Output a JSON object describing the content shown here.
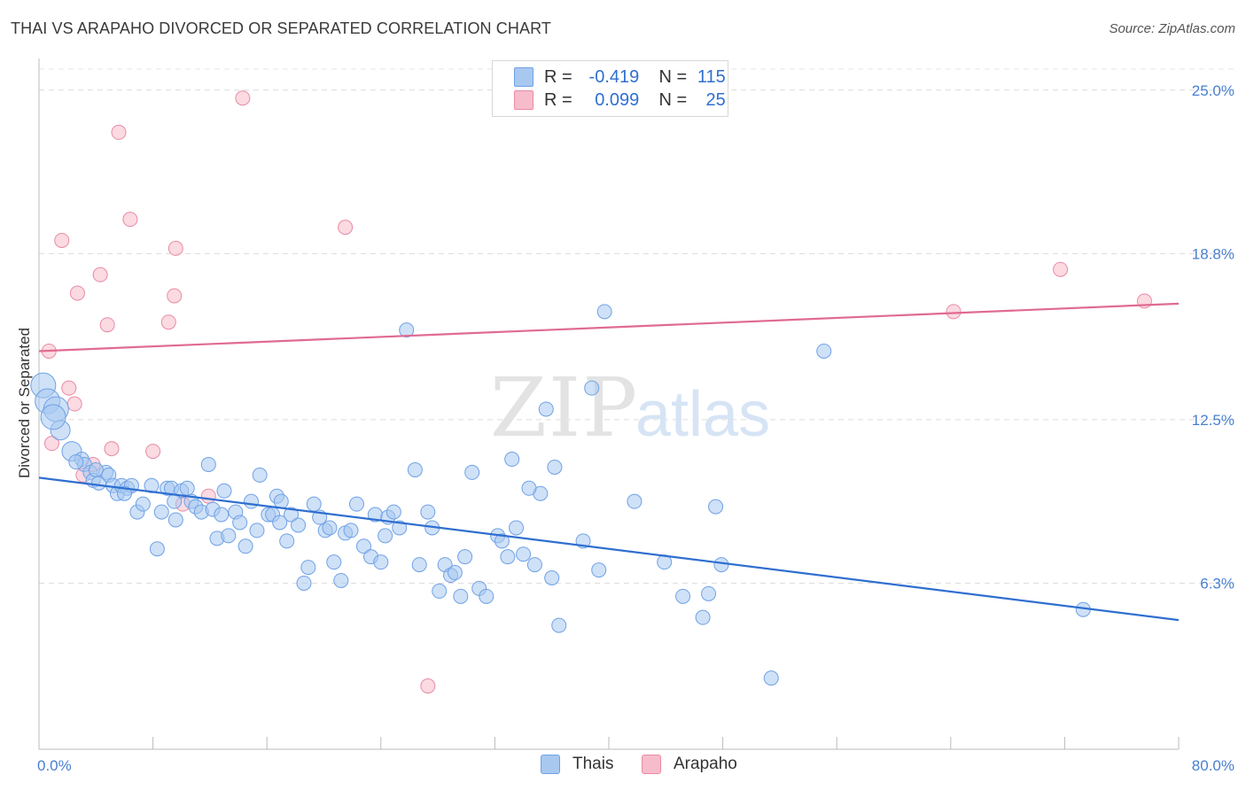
{
  "header": {
    "title": "THAI VS ARAPAHO DIVORCED OR SEPARATED CORRELATION CHART",
    "source": "Source: ZipAtlas.com"
  },
  "legend": {
    "rows": [
      {
        "r_label": "R =",
        "r_value": "-0.419",
        "n_label": "N =",
        "n_value": "115",
        "color": "#a8c8f0"
      },
      {
        "r_label": "R =",
        "r_value": "0.099",
        "n_label": "N =",
        "n_value": "25",
        "color": "#f7bccb"
      }
    ]
  },
  "bottom_legend": {
    "items": [
      {
        "label": "Thais",
        "color": "#a8c8f0"
      },
      {
        "label": "Arapaho",
        "color": "#f7bccb"
      }
    ]
  },
  "watermark": {
    "zip": "ZIP",
    "atlas": "atlas"
  },
  "chart_data": {
    "type": "scatter",
    "title": "THAI VS ARAPAHO DIVORCED OR SEPARATED CORRELATION CHART",
    "ylabel": "Divorced or Separated",
    "xlabel": "",
    "xlim": [
      0,
      80
    ],
    "ylim": [
      0,
      26
    ],
    "x_tick_labels": [
      {
        "value": 0,
        "label": "0.0%"
      },
      {
        "value": 80,
        "label": "80.0%"
      }
    ],
    "y_tick_labels": [
      {
        "value": 6.3,
        "label": "6.3%"
      },
      {
        "value": 12.5,
        "label": "12.5%"
      },
      {
        "value": 18.8,
        "label": "18.8%"
      },
      {
        "value": 25.0,
        "label": "25.0%"
      }
    ],
    "grid": true,
    "series": [
      {
        "name": "Thais",
        "color": "#6fa1e6",
        "fill": "#a8c8f0",
        "trend": {
          "x": [
            0,
            80
          ],
          "y": [
            10.3,
            4.9
          ],
          "color": "#2f6fd0"
        },
        "points": [
          [
            0.3,
            13.8
          ],
          [
            0.6,
            13.2
          ],
          [
            1.2,
            12.9
          ],
          [
            1.5,
            12.1
          ],
          [
            2.3,
            11.3
          ],
          [
            3.0,
            11.0
          ],
          [
            3.2,
            10.8
          ],
          [
            3.6,
            10.5
          ],
          [
            3.8,
            10.2
          ],
          [
            4.2,
            10.1
          ],
          [
            4.7,
            10.5
          ],
          [
            4.9,
            10.4
          ],
          [
            5.2,
            10.0
          ],
          [
            5.5,
            9.7
          ],
          [
            5.8,
            10.0
          ],
          [
            6.2,
            9.9
          ],
          [
            6.5,
            10.0
          ],
          [
            6.9,
            9.0
          ],
          [
            7.3,
            9.3
          ],
          [
            7.9,
            10.0
          ],
          [
            8.3,
            7.6
          ],
          [
            8.6,
            9.0
          ],
          [
            9.0,
            9.9
          ],
          [
            9.3,
            9.9
          ],
          [
            9.6,
            8.7
          ],
          [
            10.0,
            9.8
          ],
          [
            10.4,
            9.9
          ],
          [
            10.7,
            9.4
          ],
          [
            11.0,
            9.2
          ],
          [
            11.4,
            9.0
          ],
          [
            11.9,
            10.8
          ],
          [
            12.2,
            9.1
          ],
          [
            12.5,
            8.0
          ],
          [
            13.0,
            9.8
          ],
          [
            13.3,
            8.1
          ],
          [
            13.8,
            9.0
          ],
          [
            14.1,
            8.6
          ],
          [
            14.5,
            7.7
          ],
          [
            14.9,
            9.4
          ],
          [
            15.3,
            8.3
          ],
          [
            15.5,
            10.4
          ],
          [
            16.1,
            8.9
          ],
          [
            16.4,
            8.9
          ],
          [
            16.7,
            9.6
          ],
          [
            17.0,
            9.4
          ],
          [
            17.4,
            7.9
          ],
          [
            17.7,
            8.9
          ],
          [
            18.2,
            8.5
          ],
          [
            18.6,
            6.3
          ],
          [
            18.9,
            6.9
          ],
          [
            19.3,
            9.3
          ],
          [
            19.7,
            8.8
          ],
          [
            20.1,
            8.3
          ],
          [
            20.4,
            8.4
          ],
          [
            20.7,
            7.1
          ],
          [
            21.2,
            6.4
          ],
          [
            21.5,
            8.2
          ],
          [
            21.9,
            8.3
          ],
          [
            22.3,
            9.3
          ],
          [
            22.8,
            7.7
          ],
          [
            23.3,
            7.3
          ],
          [
            23.6,
            8.9
          ],
          [
            24.0,
            7.1
          ],
          [
            24.5,
            8.8
          ],
          [
            24.9,
            9.0
          ],
          [
            25.3,
            8.4
          ],
          [
            25.8,
            15.9
          ],
          [
            26.4,
            10.6
          ],
          [
            26.7,
            7.0
          ],
          [
            27.3,
            9.0
          ],
          [
            27.6,
            8.4
          ],
          [
            28.1,
            6.0
          ],
          [
            28.5,
            7.0
          ],
          [
            28.9,
            6.6
          ],
          [
            29.2,
            6.7
          ],
          [
            29.6,
            5.8
          ],
          [
            30.4,
            10.5
          ],
          [
            30.9,
            6.1
          ],
          [
            31.4,
            5.8
          ],
          [
            32.2,
            8.1
          ],
          [
            32.5,
            7.9
          ],
          [
            32.9,
            7.3
          ],
          [
            33.2,
            11.0
          ],
          [
            33.5,
            8.4
          ],
          [
            34.0,
            7.4
          ],
          [
            34.8,
            7.0
          ],
          [
            35.2,
            9.7
          ],
          [
            35.6,
            12.9
          ],
          [
            36.0,
            6.5
          ],
          [
            36.2,
            10.7
          ],
          [
            36.5,
            4.7
          ],
          [
            38.2,
            7.9
          ],
          [
            38.8,
            13.7
          ],
          [
            39.3,
            6.8
          ],
          [
            39.7,
            16.6
          ],
          [
            41.8,
            9.4
          ],
          [
            43.9,
            7.1
          ],
          [
            45.2,
            5.8
          ],
          [
            46.6,
            5.0
          ],
          [
            47.0,
            5.9
          ],
          [
            47.5,
            9.2
          ],
          [
            47.9,
            7.0
          ],
          [
            51.4,
            2.7
          ],
          [
            55.1,
            15.1
          ],
          [
            73.3,
            5.3
          ],
          [
            1.0,
            12.6
          ],
          [
            2.6,
            10.9
          ],
          [
            4.0,
            10.6
          ],
          [
            6.0,
            9.7
          ],
          [
            9.5,
            9.4
          ],
          [
            12.8,
            8.9
          ],
          [
            16.9,
            8.6
          ],
          [
            24.3,
            8.1
          ],
          [
            29.9,
            7.3
          ],
          [
            34.4,
            9.9
          ]
        ]
      },
      {
        "name": "Arapaho",
        "color": "#e98aa5",
        "fill": "#f7bccb",
        "trend": {
          "x": [
            0,
            80
          ],
          "y": [
            15.1,
            16.9
          ],
          "color": "#e06b92"
        },
        "points": [
          [
            0.7,
            15.1
          ],
          [
            0.9,
            11.6
          ],
          [
            1.6,
            19.3
          ],
          [
            2.1,
            13.7
          ],
          [
            2.5,
            13.1
          ],
          [
            2.7,
            17.3
          ],
          [
            3.1,
            10.4
          ],
          [
            3.8,
            10.8
          ],
          [
            4.3,
            18.0
          ],
          [
            4.8,
            16.1
          ],
          [
            5.1,
            11.4
          ],
          [
            5.6,
            23.4
          ],
          [
            6.4,
            20.1
          ],
          [
            8.0,
            11.3
          ],
          [
            9.1,
            16.2
          ],
          [
            9.5,
            17.2
          ],
          [
            9.6,
            19.0
          ],
          [
            10.1,
            9.3
          ],
          [
            11.9,
            9.6
          ],
          [
            14.3,
            24.7
          ],
          [
            21.5,
            19.8
          ],
          [
            27.3,
            2.4
          ],
          [
            64.2,
            16.6
          ],
          [
            71.7,
            18.2
          ],
          [
            77.6,
            17.0
          ]
        ]
      }
    ]
  }
}
